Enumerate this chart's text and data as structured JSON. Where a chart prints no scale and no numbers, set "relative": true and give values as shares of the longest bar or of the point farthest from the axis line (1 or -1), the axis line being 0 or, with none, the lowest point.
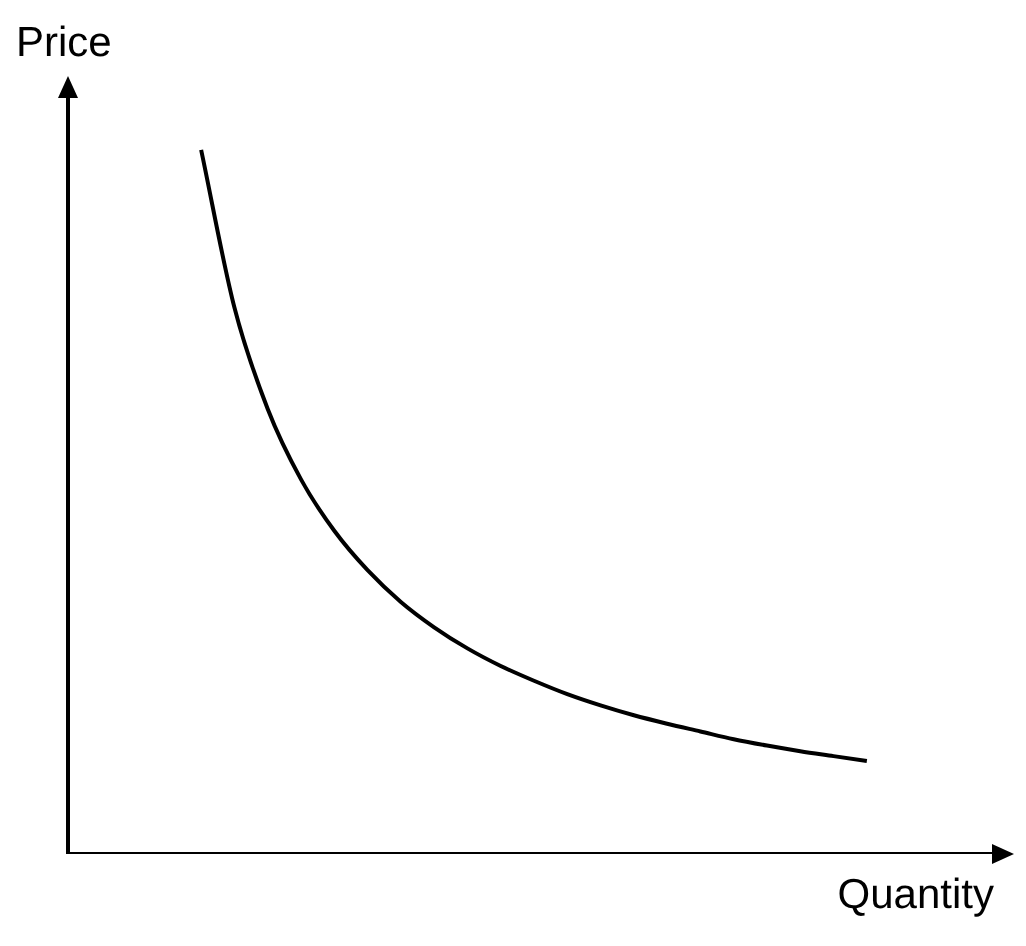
{
  "chart_data": {
    "type": "line",
    "xlabel": "Quantity",
    "ylabel": "Price",
    "relative": true,
    "color": "#000000",
    "legend": false,
    "tick_labels": false,
    "categories": [
      null,
      null,
      null,
      null,
      null,
      null,
      null,
      null,
      null,
      null,
      null,
      null,
      null,
      null,
      null,
      null,
      null,
      null,
      null,
      null,
      null,
      null,
      null,
      null,
      null,
      null,
      null,
      null,
      null
    ],
    "values": [
      null,
      null,
      null,
      null,
      1.0,
      0.776,
      0.632,
      0.532,
      0.459,
      0.403,
      0.358,
      0.322,
      0.292,
      0.267,
      0.246,
      0.227,
      0.211,
      0.197,
      0.185,
      0.174,
      0.163,
      0.154,
      0.146,
      0.139,
      0.132,
      null,
      null,
      null,
      null
    ]
  }
}
